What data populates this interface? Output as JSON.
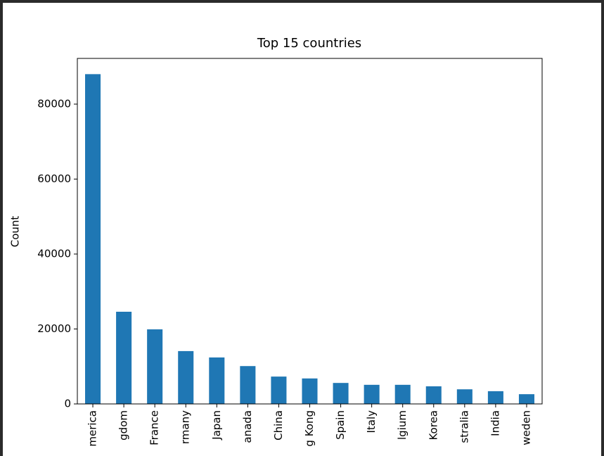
{
  "chart_data": {
    "type": "bar",
    "title": "Top 15 countries",
    "y_label": "Count",
    "categories": [
      "merica",
      "gdom",
      "France",
      "rmany",
      "Japan",
      "anada",
      "China",
      "g Kong",
      "Spain",
      "Italy",
      "lgium",
      "Korea",
      "stralia",
      "India",
      "weden"
    ],
    "values": [
      88000,
      24600,
      19900,
      14100,
      12400,
      10100,
      7300,
      6800,
      5600,
      5100,
      5100,
      4700,
      3900,
      3400,
      2600
    ],
    "color": "#1f77b4",
    "ylim": [
      0,
      92200
    ],
    "yticks": [
      0,
      20000,
      40000,
      60000,
      80000
    ],
    "grid": false
  }
}
